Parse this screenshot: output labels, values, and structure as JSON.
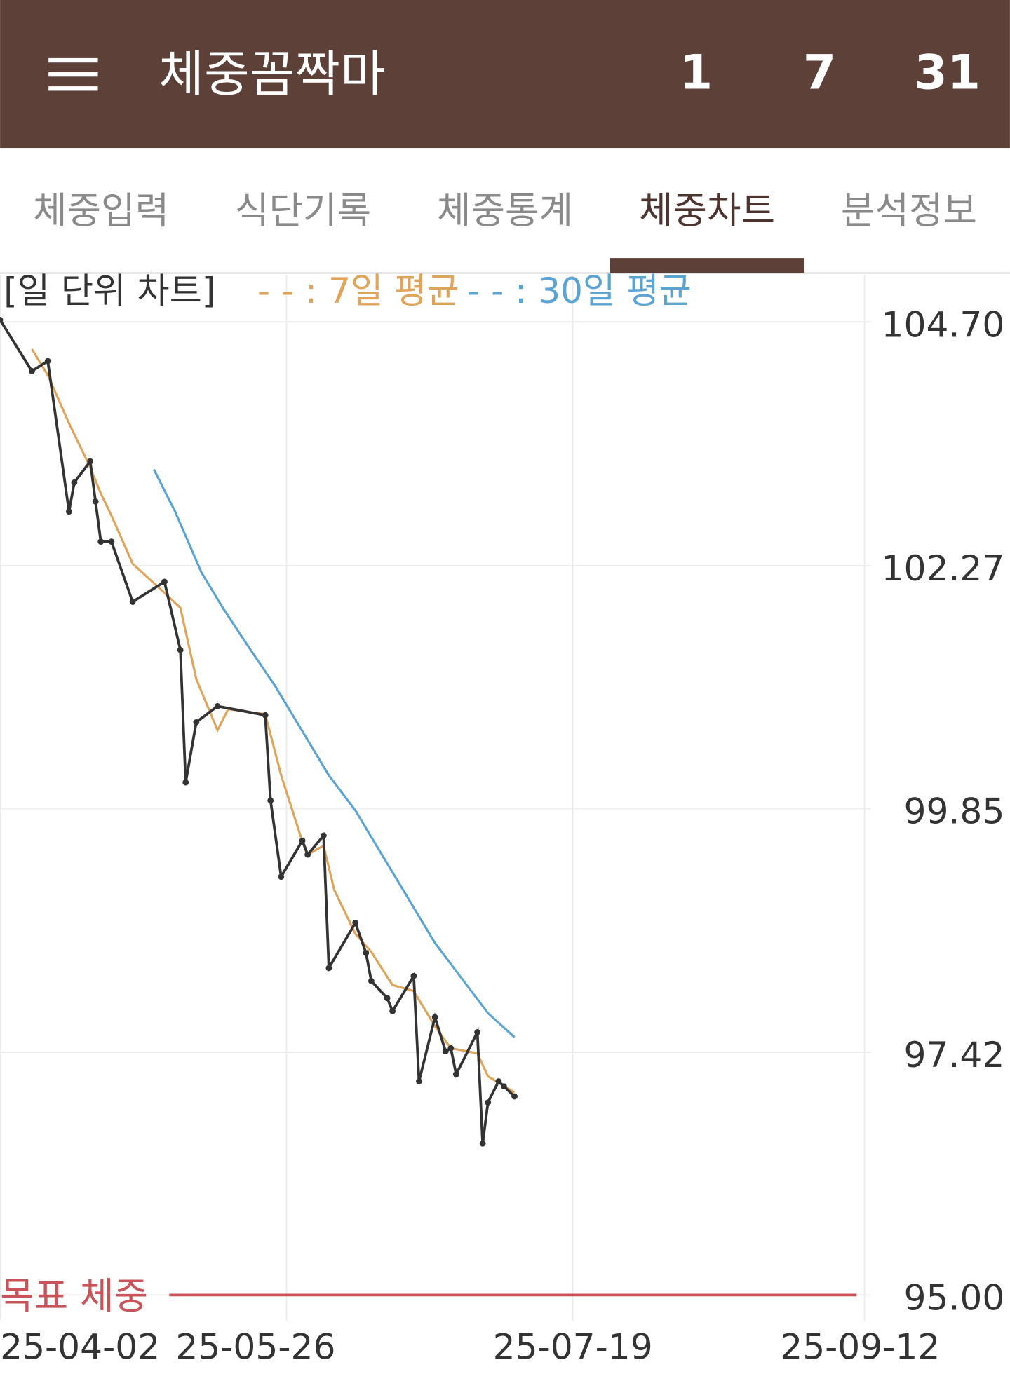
{
  "header": {
    "title": "체중꼼짝마",
    "buttons": [
      "1",
      "7",
      "31"
    ]
  },
  "tabs": [
    "체중입력",
    "식단기록",
    "체중통계",
    "체중차트",
    "분석정보"
  ],
  "active_tab": 3,
  "chart_data": {
    "type": "line",
    "title": "[일 단위 차트]",
    "xlim": [
      "25-04-02",
      "25-09-14"
    ],
    "xticks": [
      "25-04-02",
      "25-05-26",
      "25-07-19",
      "25-09-12"
    ],
    "ylim": [
      94.74,
      105.17
    ],
    "yticks": [
      {
        "value": 104.7,
        "label": "104.70"
      },
      102.27,
      99.85,
      97.42,
      {
        "value": 95,
        "label": "95.00"
      }
    ],
    "grid": true,
    "series": [
      {
        "color": "#333333",
        "markers": true,
        "x": [
          "25-04-02",
          "25-04-08",
          "25-04-11",
          "25-04-15",
          "25-04-16",
          "25-04-19",
          "25-04-20",
          "25-04-21",
          "25-04-23",
          "25-04-27",
          "25-05-03",
          "25-05-06",
          "25-05-07",
          "25-05-09",
          "25-05-13",
          "25-05-22",
          "25-05-23",
          "25-05-25",
          "25-05-29",
          "25-05-30",
          "25-06-02",
          "25-06-03",
          "25-06-08",
          "25-06-10",
          "25-06-11",
          "25-06-14",
          "25-06-15",
          "25-06-19",
          "25-06-20",
          "25-06-23",
          "25-06-25",
          "25-06-26",
          "25-06-27",
          "25-07-01",
          "25-07-02",
          "25-07-03",
          "25-07-05",
          "25-07-06",
          "25-07-08"
        ],
        "values": [
          104.72,
          104.21,
          104.31,
          102.81,
          103.1,
          103.31,
          102.91,
          102.51,
          102.51,
          101.91,
          102.11,
          101.43,
          100.11,
          100.71,
          100.87,
          100.78,
          99.93,
          99.17,
          99.53,
          99.39,
          99.58,
          98.26,
          98.71,
          98.41,
          98.13,
          97.96,
          97.83,
          98.18,
          97.13,
          97.77,
          97.43,
          97.46,
          97.2,
          97.62,
          96.51,
          96.92,
          97.13,
          97.08,
          96.98
        ]
      },
      {
        "name": "- - : 7일 평균",
        "color": "#e0a35a",
        "markers": false,
        "x": [
          "25-04-08",
          "25-04-11",
          "25-04-15",
          "25-04-19",
          "25-04-21",
          "25-04-23",
          "25-04-27",
          "25-05-03",
          "25-05-06",
          "25-05-09",
          "25-05-13",
          "25-05-15",
          "25-05-22",
          "25-05-25",
          "25-05-29",
          "25-05-30",
          "25-06-02",
          "25-06-04",
          "25-06-08",
          "25-06-11",
          "25-06-15",
          "25-06-19",
          "25-06-23",
          "25-06-26",
          "25-07-01",
          "25-07-03",
          "25-07-08"
        ],
        "values": [
          104.43,
          104.17,
          103.69,
          103.25,
          102.99,
          102.77,
          102.29,
          102.0,
          101.85,
          101.14,
          100.63,
          100.84,
          100.79,
          100.18,
          99.52,
          99.39,
          99.48,
          99.04,
          98.6,
          98.42,
          98.09,
          98.03,
          97.68,
          97.46,
          97.41,
          97.18,
          97.02
        ]
      },
      {
        "name": "- - : 30일 평균",
        "color": "#5ba3d3",
        "markers": false,
        "x": [
          "25-05-01",
          "25-05-05",
          "25-05-10",
          "25-05-14",
          "25-05-19",
          "25-05-24",
          "25-05-29",
          "25-06-03",
          "25-06-08",
          "25-06-13",
          "25-06-18",
          "25-06-23",
          "25-06-28",
          "25-07-03",
          "25-07-08"
        ],
        "values": [
          103.23,
          102.81,
          102.2,
          101.85,
          101.45,
          101.06,
          100.62,
          100.18,
          99.83,
          99.39,
          98.95,
          98.51,
          98.16,
          97.81,
          97.57
        ]
      }
    ],
    "goal": {
      "label": "목표 체중",
      "value": 95,
      "color": "#c8545a"
    }
  }
}
